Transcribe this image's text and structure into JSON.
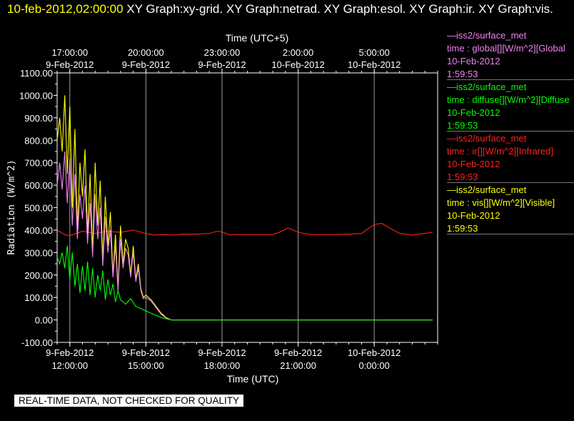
{
  "header": {
    "timestamp": "10-feb-2012,02:00:00",
    "text": " XY Graph:xy-grid.  XY Graph:netrad.  XY Graph:esol.  XY Graph:ir.  XY Graph:vis."
  },
  "legend": [
    {
      "station": "—iss2/surface_met",
      "variable": "time : global[][W/m^2][Global",
      "date": "10-Feb-2012",
      "time": "1:59:53",
      "color": "#ee82ee"
    },
    {
      "station": "—iss2/surface_met",
      "variable": "time : diffuse[][W/m^2][Diffuse",
      "date": "10-Feb-2012",
      "time": "1:59:53",
      "color": "#00ff00"
    },
    {
      "station": "—iss2/surface_met",
      "variable": "time : ir[][W/m^2][Infrared]",
      "date": "10-Feb-2012",
      "time": "1:59:53",
      "color": "#ff2020"
    },
    {
      "station": "—iss2/surface_met",
      "variable": "time : vis[][W/m^2][Visible]",
      "date": "10-Feb-2012",
      "time": "1:59:53",
      "color": "#ffff00"
    }
  ],
  "note": "REAL-TIME DATA, NOT CHECKED FOR QUALITY",
  "chart_data": {
    "type": "line",
    "title": "",
    "xlabel": "Time (UTC)",
    "x2label": "Time (UTC+5)",
    "ylabel": "Radiation (W/m^2)",
    "xlim": [
      11.5,
      26.5
    ],
    "ylim": [
      -100,
      1100
    ],
    "yticks": [
      "1100.00",
      "1000.00",
      "900.00",
      "800.00",
      "700.00",
      "600.00",
      "500.00",
      "400.00",
      "300.00",
      "200.00",
      "100.00",
      "0.00",
      "-100.00"
    ],
    "xticks": [
      {
        "x": 12,
        "date": "9-Feb-2012",
        "time": "12:00:00"
      },
      {
        "x": 15,
        "date": "9-Feb-2012",
        "time": "15:00:00"
      },
      {
        "x": 18,
        "date": "9-Feb-2012",
        "time": "18:00:00"
      },
      {
        "x": 21,
        "date": "9-Feb-2012",
        "time": "21:00:00"
      },
      {
        "x": 24,
        "date": "10-Feb-2012",
        "time": "0:00:00"
      }
    ],
    "x2ticks": [
      {
        "x": 12,
        "time": "17:00:00",
        "date": "9-Feb-2012"
      },
      {
        "x": 15,
        "time": "20:00:00",
        "date": "9-Feb-2012"
      },
      {
        "x": 18,
        "time": "23:00:00",
        "date": "9-Feb-2012"
      },
      {
        "x": 21,
        "time": "2:00:00",
        "date": "10-Feb-2012"
      },
      {
        "x": 24,
        "time": "5:00:00",
        "date": "10-Feb-2012"
      }
    ],
    "grid": "vertical",
    "series": [
      {
        "name": "ir",
        "color": "#ff2020",
        "x": [
          11.5,
          11.8,
          12.0,
          12.5,
          13.0,
          13.5,
          14.0,
          14.5,
          15.0,
          15.3,
          15.6,
          16.0,
          16.5,
          17.0,
          17.5,
          17.8,
          18.0,
          18.3,
          18.5,
          19.0,
          19.5,
          20.0,
          20.3,
          20.6,
          20.9,
          21.2,
          21.5,
          22.0,
          22.5,
          23.0,
          23.5,
          23.8,
          24.0,
          24.3,
          24.6,
          25.0,
          25.5,
          26.0,
          26.3
        ],
        "y": [
          400,
          380,
          375,
          395,
          385,
          395,
          390,
          400,
          385,
          378,
          380,
          378,
          382,
          382,
          385,
          395,
          392,
          378,
          380,
          380,
          380,
          380,
          392,
          410,
          395,
          385,
          380,
          380,
          380,
          382,
          385,
          410,
          425,
          430,
          410,
          385,
          378,
          385,
          390
        ]
      },
      {
        "name": "vis",
        "color": "#ffff00",
        "x": [
          11.5,
          11.6,
          11.7,
          11.8,
          11.9,
          12.0,
          12.1,
          12.2,
          12.3,
          12.4,
          12.5,
          12.6,
          12.7,
          12.8,
          12.9,
          13.0,
          13.1,
          13.2,
          13.3,
          13.4,
          13.5,
          13.6,
          13.7,
          13.8,
          13.9,
          14.0,
          14.1,
          14.2,
          14.3,
          14.4,
          14.5,
          14.6,
          14.7,
          14.8,
          14.9,
          15.0,
          15.2,
          15.4,
          15.6,
          15.8,
          16.0,
          16.5,
          17.0,
          18.0,
          20.0,
          22.0,
          24.0,
          26.3
        ],
        "y": [
          800,
          900,
          750,
          1000,
          650,
          950,
          500,
          850,
          400,
          700,
          550,
          760,
          380,
          650,
          300,
          700,
          420,
          620,
          260,
          550,
          330,
          480,
          200,
          380,
          140,
          420,
          250,
          360,
          320,
          200,
          330,
          180,
          250,
          140,
          100,
          110,
          90,
          60,
          30,
          10,
          0,
          0,
          0,
          0,
          0,
          0,
          0,
          0
        ]
      },
      {
        "name": "global",
        "color": "#ee82ee",
        "x": [
          11.5,
          11.6,
          11.7,
          11.8,
          11.9,
          12.0,
          12.1,
          12.2,
          12.3,
          12.4,
          12.5,
          12.6,
          12.7,
          12.8,
          12.9,
          13.0,
          13.1,
          13.2,
          13.3,
          13.4,
          13.5,
          13.6,
          13.7,
          13.8,
          13.9,
          14.0,
          14.1,
          14.2,
          14.3,
          14.4,
          14.5,
          14.6,
          14.7,
          14.8,
          14.9,
          15.0,
          15.2,
          15.4,
          15.6,
          15.8,
          16.0,
          16.5,
          17.0,
          18.0,
          20.0,
          22.0,
          24.0,
          26.3
        ],
        "y": [
          600,
          700,
          580,
          750,
          520,
          720,
          420,
          650,
          360,
          560,
          450,
          600,
          340,
          520,
          280,
          560,
          360,
          500,
          240,
          460,
          300,
          400,
          190,
          330,
          130,
          360,
          230,
          320,
          290,
          190,
          300,
          170,
          230,
          130,
          95,
          100,
          85,
          55,
          25,
          8,
          0,
          0,
          0,
          0,
          0,
          0,
          0,
          0
        ]
      },
      {
        "name": "diffuse",
        "color": "#00ff00",
        "x": [
          11.5,
          11.6,
          11.7,
          11.8,
          11.9,
          12.0,
          12.1,
          12.2,
          12.3,
          12.4,
          12.5,
          12.6,
          12.7,
          12.8,
          12.9,
          13.0,
          13.1,
          13.2,
          13.3,
          13.4,
          13.5,
          13.6,
          13.7,
          13.8,
          13.9,
          14.0,
          14.2,
          14.4,
          14.6,
          14.8,
          15.0,
          15.2,
          15.4,
          15.6,
          15.8,
          16.0,
          16.5,
          17.0,
          18.0,
          20.0,
          22.0,
          24.0,
          26.3
        ],
        "y": [
          280,
          250,
          300,
          230,
          330,
          180,
          300,
          150,
          250,
          120,
          240,
          130,
          260,
          110,
          230,
          100,
          200,
          130,
          220,
          90,
          180,
          110,
          160,
          80,
          130,
          90,
          70,
          95,
          60,
          50,
          40,
          30,
          20,
          10,
          5,
          0,
          0,
          0,
          0,
          0,
          0,
          0,
          0
        ]
      }
    ]
  }
}
